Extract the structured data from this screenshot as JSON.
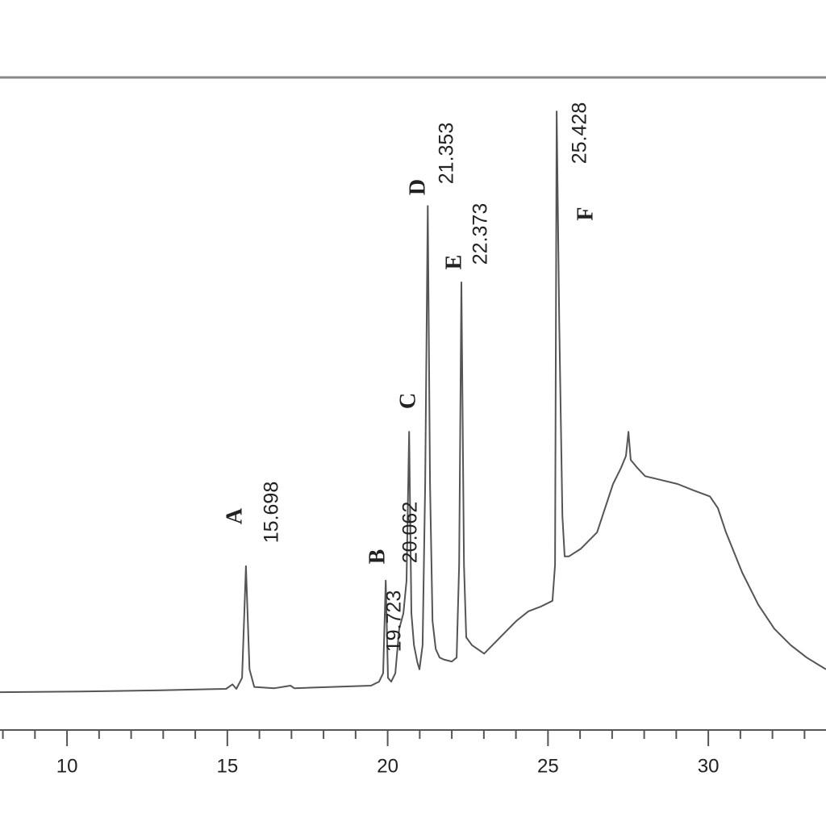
{
  "chart_data": {
    "type": "line",
    "color": "#555555",
    "x": [
      7.91,
      10.43,
      12.94,
      14.96,
      15.16,
      15.28,
      15.46,
      15.58,
      15.69,
      15.84,
      16.47,
      16.97,
      17.09,
      19.48,
      19.73,
      19.86,
      19.94,
      20.01,
      20.11,
      20.24,
      20.36,
      20.49,
      20.59,
      20.67,
      20.74,
      20.82,
      20.92,
      20.99,
      21.09,
      21.17,
      21.25,
      21.32,
      21.4,
      21.5,
      21.62,
      21.75,
      22.0,
      22.15,
      22.23,
      22.3,
      22.38,
      22.45,
      22.63,
      23.01,
      23.51,
      24.01,
      24.39,
      24.77,
      25.14,
      25.22,
      25.27,
      25.35,
      25.45,
      25.52,
      25.65,
      26.03,
      26.53,
      27.03,
      27.28,
      27.43,
      27.51,
      27.58,
      27.78,
      28.03,
      28.54,
      29.04,
      29.55,
      30.05,
      30.3,
      30.55,
      31.06,
      31.56,
      32.06,
      32.57,
      33.07,
      33.67
    ],
    "values": [
      5.8,
      5.9,
      6.1,
      6.3,
      7.0,
      6.3,
      8.0,
      25.1,
      9.3,
      6.6,
      6.4,
      6.8,
      6.4,
      6.8,
      7.4,
      8.7,
      22.9,
      8.0,
      7.4,
      8.7,
      15.5,
      17.9,
      22.9,
      45.7,
      17.9,
      13.0,
      10.5,
      9.3,
      13.0,
      37.7,
      80.3,
      37.7,
      16.7,
      12.4,
      11.1,
      10.8,
      10.5,
      11.1,
      25.3,
      68.6,
      25.3,
      14.2,
      13.0,
      11.7,
      14.2,
      16.7,
      18.2,
      18.9,
      19.8,
      25.3,
      94.8,
      62.4,
      32.8,
      26.6,
      26.6,
      27.8,
      30.3,
      37.7,
      40.2,
      42.0,
      45.7,
      41.4,
      40.2,
      38.9,
      38.3,
      37.7,
      36.7,
      35.8,
      34.0,
      30.3,
      24.1,
      19.2,
      15.5,
      13.0,
      11.1,
      9.3
    ],
    "xlim": [
      7.91,
      33.67
    ],
    "ylim": [
      0,
      100
    ],
    "xticks": [
      10,
      15,
      20,
      25,
      30
    ],
    "xminor_ticks": [
      8,
      9,
      11,
      12,
      13,
      14,
      16,
      17,
      18,
      19,
      21,
      22,
      23,
      24,
      26,
      27,
      28,
      29,
      31,
      32,
      33
    ],
    "annotations": [
      {
        "label": "A",
        "value": 15.698
      },
      {
        "label": "B",
        "value": 19.723
      },
      {
        "label": "C",
        "value": 20.062
      },
      {
        "label": "D",
        "value": 21.353
      },
      {
        "label": "E",
        "value": 22.373
      },
      {
        "label": "F",
        "value": 25.428
      }
    ]
  }
}
